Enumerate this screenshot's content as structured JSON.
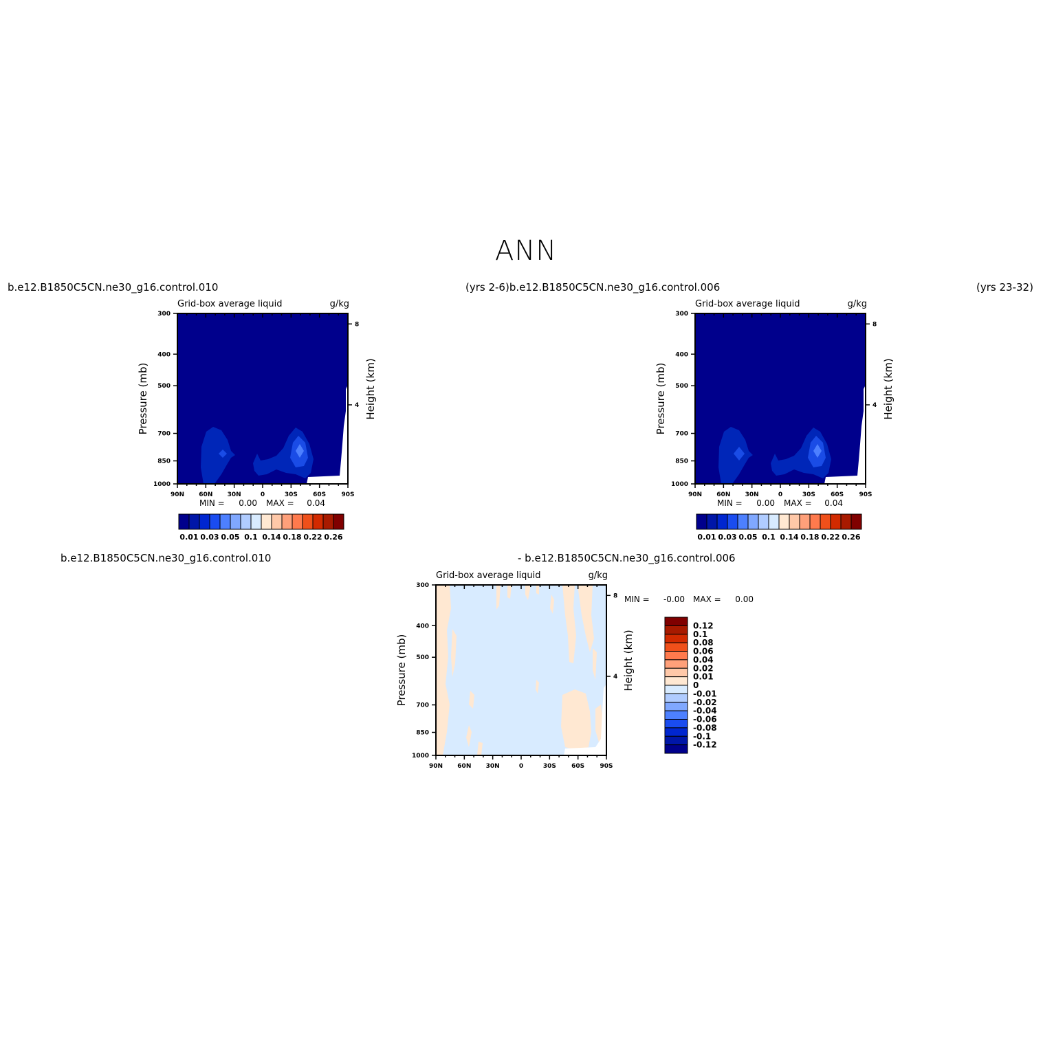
{
  "page": {
    "title": "ANN",
    "top_left_title": "b.e12.B1850C5CN.ne30_g16.control.010",
    "top_mid_title": "(yrs 2-6)b.e12.B1850C5CN.ne30_g16.control.006",
    "top_right_title": "(yrs 23-32)",
    "bottom_left_title": "b.e12.B1850C5CN.ne30_g16.control.010",
    "bottom_mid_title": "- b.e12.B1850C5CN.ne30_g16.control.006"
  },
  "colors": {
    "fill_level_0": "#00008c",
    "fill_level_1": "#0026b8",
    "fill_level_2": "#1a4ce6",
    "fill_level_3": "#4d80ff",
    "diff_positive": "#ffe8d2",
    "diff_negative": "#d8ebff"
  },
  "chart_data": [
    {
      "type": "heatmap",
      "title": "Grid-box average liquid",
      "units": "g/kg",
      "ylabel": "Pressure (mb)",
      "ylabel_right": "Height (km)",
      "x_ticks": [
        "90N",
        "60N",
        "30N",
        "0",
        "30S",
        "60S",
        "90S"
      ],
      "y_ticks": [
        "300",
        "400",
        "500",
        "700",
        "850",
        "1000"
      ],
      "y_right_ticks": [
        "8",
        "4"
      ],
      "ylim": [
        1000,
        300
      ],
      "min_label": "MIN =",
      "min_value": "0.00",
      "max_label": "MAX =",
      "max_value": "0.04",
      "features": [
        {
          "center": "45N",
          "pressure_mb": 870,
          "max_level": "0.03"
        },
        {
          "center": "45S",
          "pressure_mb": 870,
          "max_level": "0.05"
        }
      ],
      "colorbar": {
        "labels": [
          "0.01",
          "0.03",
          "0.05",
          "0.1",
          "0.14",
          "0.18",
          "0.22",
          "0.26"
        ],
        "colors": [
          "#00008c",
          "#0016a8",
          "#0026d0",
          "#1a4cf0",
          "#4d80ff",
          "#80a8ff",
          "#b0ccff",
          "#d8ebff",
          "#ffe8d2",
          "#ffc8a8",
          "#ffa07a",
          "#ff7a4d",
          "#f0501a",
          "#d22a00",
          "#a81a00",
          "#800000"
        ]
      }
    },
    {
      "type": "heatmap",
      "title": "Grid-box average liquid",
      "units": "g/kg",
      "ylabel": "Pressure (mb)",
      "ylabel_right": "Height (km)",
      "x_ticks": [
        "90N",
        "60N",
        "30N",
        "0",
        "30S",
        "60S",
        "90S"
      ],
      "y_ticks": [
        "300",
        "400",
        "500",
        "700",
        "850",
        "1000"
      ],
      "y_right_ticks": [
        "8",
        "4"
      ],
      "ylim": [
        1000,
        300
      ],
      "min_label": "MIN =",
      "min_value": "0.00",
      "max_label": "MAX =",
      "max_value": "0.04",
      "features": [
        {
          "center": "45N",
          "pressure_mb": 870,
          "max_level": "0.03"
        },
        {
          "center": "45S",
          "pressure_mb": 870,
          "max_level": "0.05"
        }
      ],
      "colorbar": {
        "labels": [
          "0.01",
          "0.03",
          "0.05",
          "0.1",
          "0.14",
          "0.18",
          "0.22",
          "0.26"
        ],
        "colors": [
          "#00008c",
          "#0016a8",
          "#0026d0",
          "#1a4cf0",
          "#4d80ff",
          "#80a8ff",
          "#b0ccff",
          "#d8ebff",
          "#ffe8d2",
          "#ffc8a8",
          "#ffa07a",
          "#ff7a4d",
          "#f0501a",
          "#d22a00",
          "#a81a00",
          "#800000"
        ]
      }
    },
    {
      "type": "heatmap",
      "title": "Grid-box average liquid",
      "units": "g/kg",
      "ylabel": "Pressure (mb)",
      "ylabel_right": "Height (km)",
      "x_ticks": [
        "90N",
        "60N",
        "30N",
        "0",
        "30S",
        "60S",
        "90S"
      ],
      "y_ticks": [
        "300",
        "400",
        "500",
        "700",
        "850",
        "1000"
      ],
      "y_right_ticks": [
        "8",
        "4"
      ],
      "ylim": [
        1000,
        300
      ],
      "min_label": "MIN =",
      "min_value": "-0.00",
      "max_label": "MAX =",
      "max_value": "0.00",
      "colorbar": {
        "labels": [
          "0.12",
          "0.1",
          "0.08",
          "0.06",
          "0.04",
          "0.02",
          "0.01",
          "0",
          "-0.01",
          "-0.02",
          "-0.04",
          "-0.06",
          "-0.08",
          "-0.1",
          "-0.12"
        ],
        "colors": [
          "#800000",
          "#a81a00",
          "#d22a00",
          "#f0501a",
          "#ff7a4d",
          "#ffa07a",
          "#ffc8a8",
          "#ffe8d2",
          "#d8ebff",
          "#b0ccff",
          "#80a8ff",
          "#4d80ff",
          "#1a4cf0",
          "#0026d0",
          "#0016a8",
          "#00008c"
        ]
      }
    }
  ]
}
